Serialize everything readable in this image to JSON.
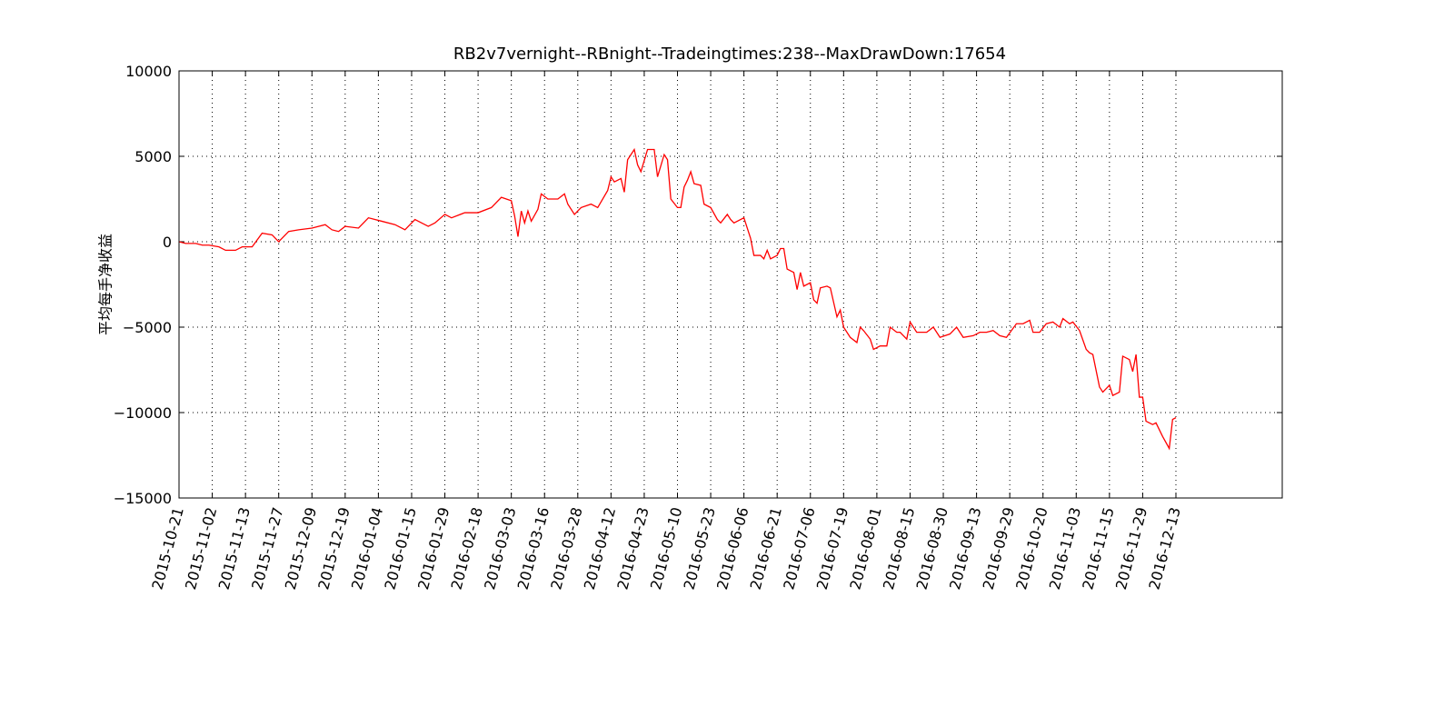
{
  "chart_data": {
    "type": "line",
    "title": "RB2v7vernight--RBnight--Tradeingtimes:238--MaxDrawDown:17654",
    "y_label": "平均每手净收益",
    "color": "#ff0000",
    "grid": true,
    "xlim": [
      0,
      332
    ],
    "ylim": [
      -15000,
      10000
    ],
    "yticks": [
      {
        "value": -15000,
        "label": "−15000"
      },
      {
        "value": -10000,
        "label": "−10000"
      },
      {
        "value": -5000,
        "label": "−5000"
      },
      0,
      5000,
      10000
    ],
    "xticks": [
      {
        "value": 0,
        "label": "2015-10-21"
      },
      {
        "value": 10,
        "label": "2015-11-02"
      },
      {
        "value": 20,
        "label": "2015-11-13"
      },
      {
        "value": 30,
        "label": "2015-11-27"
      },
      {
        "value": 40,
        "label": "2015-12-09"
      },
      {
        "value": 50,
        "label": "2015-12-19"
      },
      {
        "value": 60,
        "label": "2016-01-04"
      },
      {
        "value": 70,
        "label": "2016-01-15"
      },
      {
        "value": 80,
        "label": "2016-01-29"
      },
      {
        "value": 90,
        "label": "2016-02-18"
      },
      {
        "value": 100,
        "label": "2016-03-03"
      },
      {
        "value": 110,
        "label": "2016-03-16"
      },
      {
        "value": 120,
        "label": "2016-03-28"
      },
      {
        "value": 130,
        "label": "2016-04-12"
      },
      {
        "value": 140,
        "label": "2016-04-23"
      },
      {
        "value": 150,
        "label": "2016-05-10"
      },
      {
        "value": 160,
        "label": "2016-05-23"
      },
      {
        "value": 170,
        "label": "2016-06-06"
      },
      {
        "value": 180,
        "label": "2016-06-21"
      },
      {
        "value": 190,
        "label": "2016-07-06"
      },
      {
        "value": 200,
        "label": "2016-07-19"
      },
      {
        "value": 210,
        "label": "2016-08-01"
      },
      {
        "value": 220,
        "label": "2016-08-15"
      },
      {
        "value": 230,
        "label": "2016-08-30"
      },
      {
        "value": 240,
        "label": "2016-09-13"
      },
      {
        "value": 250,
        "label": "2016-09-29"
      },
      {
        "value": 260,
        "label": "2016-10-20"
      },
      {
        "value": 270,
        "label": "2016-11-03"
      },
      {
        "value": 280,
        "label": "2016-11-15"
      },
      {
        "value": 290,
        "label": "2016-11-29"
      },
      {
        "value": 300,
        "label": "2016-12-13"
      }
    ],
    "x": [
      0,
      2,
      5,
      7,
      9,
      12,
      14,
      17,
      19,
      22,
      25,
      28,
      30,
      33,
      36,
      40,
      44,
      46,
      48,
      50,
      54,
      57,
      61,
      65,
      68,
      71,
      75,
      77,
      80,
      82,
      86,
      90,
      94,
      97,
      100,
      101,
      102,
      103,
      104,
      105,
      106,
      108,
      109,
      111,
      114,
      116,
      117,
      119,
      121,
      124,
      126,
      129,
      130,
      131,
      133,
      134,
      135,
      137,
      138,
      139,
      141,
      143,
      144,
      146,
      147,
      148,
      150,
      151,
      152,
      153,
      154,
      155,
      157,
      158,
      160,
      162,
      163,
      165,
      166,
      167,
      170,
      172,
      173,
      175,
      176,
      177,
      178,
      180,
      181,
      182,
      183,
      185,
      186,
      187,
      188,
      190,
      191,
      192,
      193,
      195,
      196,
      198,
      199,
      200,
      202,
      204,
      205,
      206,
      208,
      209,
      211,
      213,
      214,
      216,
      217,
      219,
      220,
      222,
      225,
      227,
      229,
      232,
      234,
      236,
      239,
      241,
      243,
      245,
      247,
      249,
      252,
      254,
      256,
      257,
      259,
      261,
      263,
      265,
      266,
      268,
      269,
      271,
      273,
      274,
      275,
      277,
      278,
      280,
      281,
      283,
      284,
      286,
      287,
      288,
      289,
      290,
      291,
      293,
      294,
      296,
      298,
      299,
      300
    ],
    "values": [
      0,
      -100,
      -100,
      -200,
      -200,
      -300,
      -500,
      -500,
      -300,
      -300,
      500,
      400,
      0,
      600,
      700,
      800,
      1000,
      700,
      600,
      900,
      800,
      1400,
      1200,
      1000,
      700,
      1300,
      900,
      1100,
      1600,
      1400,
      1700,
      1700,
      2000,
      2600,
      2400,
      1500,
      300,
      1800,
      1100,
      1800,
      1200,
      1900,
      2800,
      2500,
      2500,
      2800,
      2200,
      1600,
      2000,
      2200,
      2000,
      3000,
      3800,
      3500,
      3700,
      2900,
      4800,
      5400,
      4500,
      4100,
      5400,
      5400,
      3800,
      5100,
      4800,
      2500,
      2000,
      2000,
      3200,
      3600,
      4100,
      3400,
      3300,
      2200,
      2000,
      1300,
      1100,
      1600,
      1300,
      1100,
      1400,
      200,
      -800,
      -800,
      -1000,
      -500,
      -1000,
      -800,
      -400,
      -400,
      -1600,
      -1800,
      -2800,
      -1800,
      -2600,
      -2400,
      -3400,
      -3600,
      -2700,
      -2600,
      -2700,
      -4400,
      -4000,
      -5000,
      -5600,
      -5900,
      -5000,
      -5200,
      -5700,
      -6300,
      -6100,
      -6100,
      -5000,
      -5300,
      -5300,
      -5700,
      -4700,
      -5300,
      -5300,
      -5000,
      -5600,
      -5400,
      -5000,
      -5600,
      -5500,
      -5300,
      -5300,
      -5200,
      -5500,
      -5600,
      -4800,
      -4800,
      -4600,
      -5300,
      -5300,
      -4800,
      -4700,
      -5000,
      -4500,
      -4800,
      -4700,
      -5200,
      -6300,
      -6500,
      -6600,
      -8500,
      -8800,
      -8400,
      -9000,
      -8800,
      -6700,
      -6900,
      -7600,
      -6600,
      -9100,
      -9100,
      -10500,
      -10700,
      -10600,
      -11400,
      -12100,
      -10400,
      -10300
    ]
  }
}
